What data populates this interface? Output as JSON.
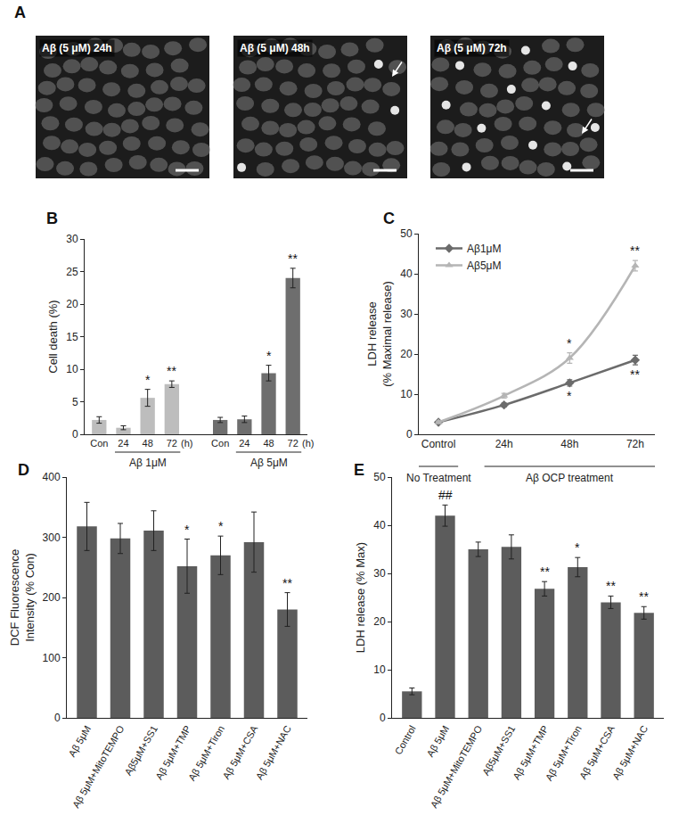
{
  "panel_labels": [
    "A",
    "B",
    "C",
    "D",
    "E"
  ],
  "micrographs": {
    "labels": [
      "Aβ (5 μM) 24h",
      "Aβ (5 μM) 48h",
      "Aβ (5 μM) 72h"
    ]
  },
  "chart_data": [
    {
      "type": "bar",
      "y_label": "Cell death (%)",
      "categories": [
        "Con",
        "24",
        "48",
        "72",
        null,
        "Con",
        "24",
        "48",
        "72"
      ],
      "values": [
        2.2,
        1.0,
        5.6,
        7.7,
        null,
        2.2,
        2.3,
        9.4,
        24.0
      ],
      "errors": [
        0.5,
        0.3,
        1.3,
        0.5,
        null,
        0.4,
        0.5,
        1.2,
        1.5
      ],
      "significance": [
        null,
        null,
        "*",
        "**",
        null,
        null,
        null,
        "*",
        "**"
      ],
      "colors": [
        "#bdbdbd",
        "#bdbdbd",
        "#bdbdbd",
        "#bdbdbd",
        null,
        "#6e6e6e",
        "#6e6e6e",
        "#6e6e6e",
        "#6e6e6e"
      ],
      "x_groups": [
        "Aβ 1μM",
        "Aβ 5μM"
      ],
      "x_unit": "(h)",
      "ylim": [
        0,
        30
      ],
      "yticks": [
        0,
        5,
        10,
        15,
        20,
        25,
        30
      ],
      "grid": false
    },
    {
      "type": "line",
      "y_label": "LDH release\n(% Maximal release)",
      "categories": [
        "Control",
        "24h",
        "48h",
        "72h"
      ],
      "series": [
        {
          "name": "Aβ1μM",
          "color": "#6b6b6b",
          "marker": "diamond",
          "values": [
            3.0,
            7.3,
            12.8,
            18.5
          ],
          "errors": [
            0.3,
            0.5,
            0.8,
            1.2
          ],
          "significance": [
            null,
            null,
            "*",
            "**"
          ]
        },
        {
          "name": "Aβ5μM",
          "color": "#b5b5b5",
          "marker": "triangle-up",
          "values": [
            3.0,
            9.6,
            19.0,
            42.0
          ],
          "errors": [
            0.3,
            0.6,
            1.3,
            1.3
          ],
          "significance": [
            null,
            null,
            "*",
            "**"
          ]
        }
      ],
      "line_style": "smooth",
      "legend": "top-left",
      "x_groups": [
        {
          "label": "No Treatment",
          "categories": [
            "Control"
          ]
        },
        {
          "label": "Aβ OCP treatment",
          "categories": [
            "24h",
            "48h",
            "72h"
          ]
        }
      ],
      "ylim": [
        0,
        50
      ],
      "yticks": [
        0,
        10,
        20,
        30,
        40,
        50
      ],
      "grid": false
    },
    {
      "type": "bar",
      "y_label": "DCF Fluorescence\nIntensity (% Con)",
      "categories": [
        "Aβ 5μM",
        "Aβ 5μM+MitoTEMPO",
        "Aβ5μM+SS1",
        "Aβ 5μM+TMP",
        "Aβ 5μM+Tiron",
        "Aβ 5μM+CSA",
        "Aβ 5μM+NAC"
      ],
      "values": [
        318,
        298,
        311,
        252,
        270,
        292,
        180
      ],
      "errors": [
        40,
        25,
        33,
        45,
        32,
        50,
        28
      ],
      "significance": [
        null,
        null,
        null,
        "*",
        "*",
        null,
        "**"
      ],
      "color": "#5c5c5c",
      "ylim": [
        0,
        400
      ],
      "yticks": [
        0,
        100,
        200,
        300,
        400
      ],
      "grid": false
    },
    {
      "type": "bar",
      "y_label": "LDH release (% Max)",
      "categories": [
        "Control",
        "Aβ 5μM",
        "Aβ 5μM+MitoTEMPO",
        "Aβ5μM+SS1",
        "Aβ 5μM+TMP",
        "Aβ 5μM+Tiron",
        "Aβ 5μM+CSA",
        "Aβ 5μM+NAC"
      ],
      "values": [
        5.5,
        42.0,
        35.0,
        35.5,
        26.8,
        31.3,
        24.0,
        21.8
      ],
      "errors": [
        0.7,
        2.2,
        1.5,
        2.5,
        1.5,
        2.0,
        1.3,
        1.3
      ],
      "significance": [
        null,
        "##",
        null,
        null,
        "**",
        "*",
        "**",
        "**"
      ],
      "color": "#5c5c5c",
      "ylim": [
        0,
        50
      ],
      "yticks": [
        0,
        10,
        20,
        30,
        40,
        50
      ],
      "grid": false
    }
  ]
}
